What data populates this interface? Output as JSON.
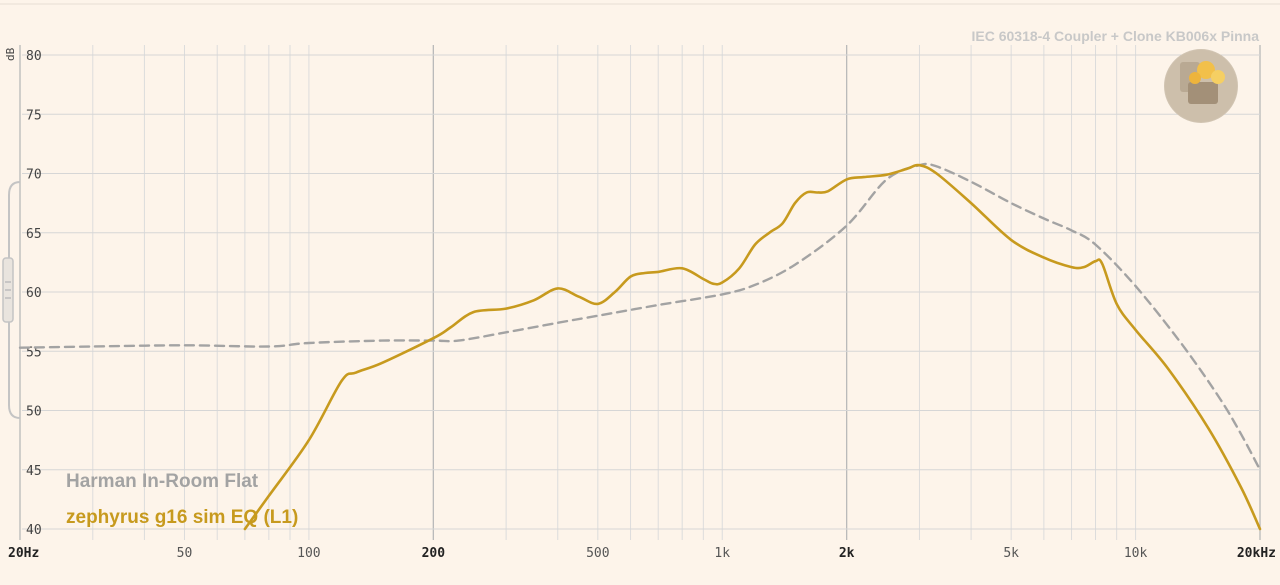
{
  "header": {
    "rig_label": "IEC 60318-4 Coupler + Clone KB006x Pinna"
  },
  "colors": {
    "background": "#fdf4ea",
    "target": "#a3a3a3",
    "measurement": "#c79a1e"
  },
  "chart_data": {
    "type": "line",
    "xscale": "log",
    "xlim": [
      20,
      20000
    ],
    "ylim": [
      40,
      80
    ],
    "ylabel": "dB",
    "grid": true,
    "y_ticks": [
      "80",
      "75",
      "70",
      "65",
      "60",
      "55",
      "50",
      "45",
      "40"
    ],
    "y_tick_values": [
      80,
      75,
      70,
      65,
      60,
      55,
      50,
      45,
      40
    ],
    "x_ticks": [
      {
        "label": "20Hz",
        "value": 20
      },
      {
        "label": "50",
        "value": 50
      },
      {
        "label": "100",
        "value": 100
      },
      {
        "label": "200",
        "value": 200
      },
      {
        "label": "500",
        "value": 500
      },
      {
        "label": "1k",
        "value": 1000
      },
      {
        "label": "2k",
        "value": 2000
      },
      {
        "label": "5k",
        "value": 5000
      },
      {
        "label": "10k",
        "value": 10000
      },
      {
        "label": "20kHz",
        "value": 20000
      }
    ],
    "legend_position": "bottom-left",
    "series": [
      {
        "name": "Harman In-Room Flat",
        "color": "#a3a3a3",
        "dash": true,
        "points": [
          [
            20,
            55.3
          ],
          [
            30,
            55.4
          ],
          [
            50,
            55.5
          ],
          [
            80,
            55.4
          ],
          [
            100,
            55.7
          ],
          [
            150,
            55.9
          ],
          [
            200,
            55.9
          ],
          [
            230,
            55.9
          ],
          [
            300,
            56.6
          ],
          [
            400,
            57.4
          ],
          [
            500,
            58.0
          ],
          [
            700,
            58.9
          ],
          [
            1000,
            59.8
          ],
          [
            1200,
            60.6
          ],
          [
            1500,
            62.3
          ],
          [
            2000,
            65.6
          ],
          [
            2500,
            69.5
          ],
          [
            3000,
            70.7
          ],
          [
            3300,
            70.6
          ],
          [
            4000,
            69.3
          ],
          [
            5000,
            67.5
          ],
          [
            6000,
            66.2
          ],
          [
            7000,
            65.2
          ],
          [
            8000,
            64.0
          ],
          [
            10000,
            60.5
          ],
          [
            13000,
            55.5
          ],
          [
            16000,
            51.0
          ],
          [
            18000,
            48.0
          ],
          [
            20000,
            45.0
          ]
        ]
      },
      {
        "name": "zephyrus g16 sim EQ (L1)",
        "color": "#c79a1e",
        "dash": false,
        "points": [
          [
            70,
            40.0
          ],
          [
            80,
            42.8
          ],
          [
            100,
            47.5
          ],
          [
            120,
            52.5
          ],
          [
            130,
            53.2
          ],
          [
            150,
            54.0
          ],
          [
            200,
            56.1
          ],
          [
            220,
            57.0
          ],
          [
            250,
            58.3
          ],
          [
            300,
            58.6
          ],
          [
            350,
            59.3
          ],
          [
            400,
            60.3
          ],
          [
            450,
            59.6
          ],
          [
            500,
            59.0
          ],
          [
            550,
            60.0
          ],
          [
            600,
            61.3
          ],
          [
            650,
            61.6
          ],
          [
            700,
            61.7
          ],
          [
            800,
            62.0
          ],
          [
            900,
            61.1
          ],
          [
            950,
            60.7
          ],
          [
            1000,
            60.8
          ],
          [
            1100,
            62.0
          ],
          [
            1200,
            64.0
          ],
          [
            1300,
            65.0
          ],
          [
            1400,
            65.8
          ],
          [
            1500,
            67.5
          ],
          [
            1600,
            68.4
          ],
          [
            1700,
            68.4
          ],
          [
            1800,
            68.5
          ],
          [
            2000,
            69.5
          ],
          [
            2200,
            69.7
          ],
          [
            2500,
            69.9
          ],
          [
            2800,
            70.4
          ],
          [
            3000,
            70.7
          ],
          [
            3300,
            70.0
          ],
          [
            4000,
            67.5
          ],
          [
            5000,
            64.4
          ],
          [
            6000,
            62.9
          ],
          [
            7000,
            62.1
          ],
          [
            7500,
            62.1
          ],
          [
            8000,
            62.6
          ],
          [
            8300,
            62.4
          ],
          [
            9000,
            59.0
          ],
          [
            10000,
            56.8
          ],
          [
            12000,
            53.5
          ],
          [
            15000,
            48.5
          ],
          [
            18000,
            43.5
          ],
          [
            20000,
            40.0
          ]
        ]
      }
    ]
  }
}
